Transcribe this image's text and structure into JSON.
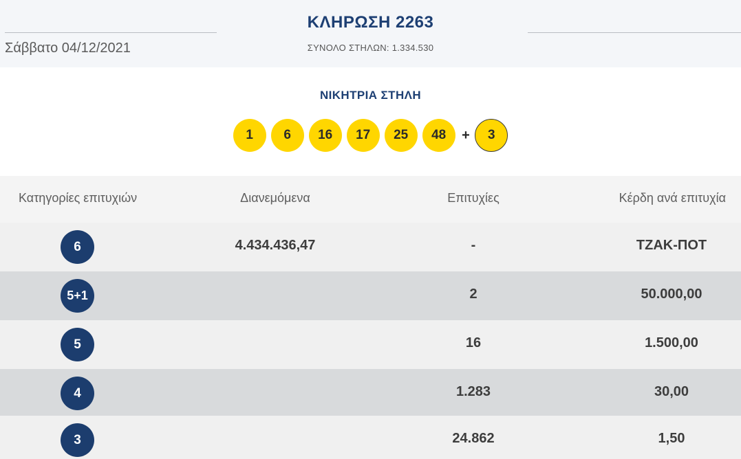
{
  "header": {
    "date": "Σάββατο 04/12/2021",
    "title": "ΚΛΗΡΩΣΗ 2263",
    "total_columns": "ΣΥΝΟΛΟ ΣΤΗΛΩΝ: 1.334.530"
  },
  "winning": {
    "label": "ΝΙΚΗΤΡΙΑ ΣΤΗΛΗ",
    "numbers": [
      "1",
      "6",
      "16",
      "17",
      "25",
      "48"
    ],
    "plus": "+",
    "joker": "3"
  },
  "colors": {
    "navy": "#1c3d6e",
    "ball_yellow": "#ffd600",
    "row_light": "#f0f0f0",
    "row_dark": "#d8dadc"
  },
  "table": {
    "headers": [
      "Κατηγορίες επιτυχιών",
      "Διανεμόμενα",
      "Επιτυχίες",
      "Κέρδη ανά επιτυχία"
    ],
    "rows": [
      {
        "category": "6",
        "distributed": "4.434.436,47",
        "winners": "-",
        "prize": "ΤΖΑΚ-ΠΟΤ"
      },
      {
        "category": "5+1",
        "distributed": "",
        "winners": "2",
        "prize": "50.000,00"
      },
      {
        "category": "5",
        "distributed": "",
        "winners": "16",
        "prize": "1.500,00"
      },
      {
        "category": "4",
        "distributed": "",
        "winners": "1.283",
        "prize": "30,00"
      },
      {
        "category": "3",
        "distributed": "",
        "winners": "24.862",
        "prize": "1,50"
      }
    ]
  }
}
